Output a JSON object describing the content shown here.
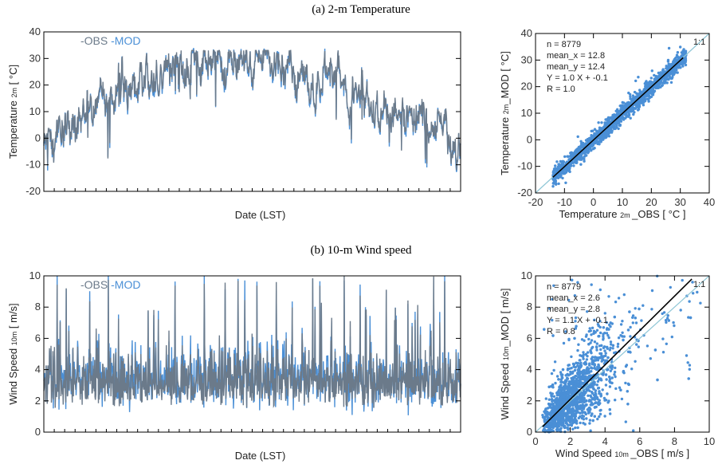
{
  "colors": {
    "obs": "#6b7a8a",
    "mod": "#4a8fd6",
    "fit": "#000000",
    "oneone": "#8ec6d6",
    "axis": "#000000"
  },
  "chart_data": [
    {
      "id": "temp-ts",
      "type": "line",
      "section_title": "(a) 2-m Temperature",
      "xlabel": "Date (LST)",
      "ylabel_main": "Temperature",
      "ylabel_sub": "2m",
      "ylabel_unit": " [ °C]",
      "ylim": [
        -20,
        40
      ],
      "yticks": [
        "-20",
        "-10",
        "0",
        "10",
        "20",
        "30",
        "40"
      ],
      "legend": {
        "obs": "-OBS",
        "mod": "-MOD"
      },
      "n_hours": 8779,
      "seasonal": {
        "min": -2,
        "max": 28,
        "peak_fraction": 0.62
      },
      "series": [
        {
          "name": "OBS"
        },
        {
          "name": "MOD"
        }
      ]
    },
    {
      "id": "temp-scatter",
      "type": "scatter",
      "xlabel_main": "Temperature",
      "xlabel_sub": "2m",
      "xlabel_unit": "_OBS [ °C ]",
      "ylabel_main": "Temperature",
      "ylabel_sub": "2m",
      "ylabel_unit": "_MOD [ °C]",
      "xlim": [
        -20,
        40
      ],
      "ylim": [
        -20,
        40
      ],
      "xticks": [
        "-20",
        "-10",
        "0",
        "10",
        "20",
        "30",
        "40"
      ],
      "yticks": [
        "-20",
        "-10",
        "0",
        "10",
        "20",
        "30",
        "40"
      ],
      "stats": [
        "n = 8779",
        "mean_x = 12.8",
        "mean_y = 12.4",
        "Y = 1.0 X + -0.1",
        "R = 1.0"
      ],
      "one_to_one_label": "1:1",
      "fit": {
        "slope": 1.0,
        "intercept": -0.1,
        "x_range": [
          -14,
          31
        ]
      }
    },
    {
      "id": "wind-ts",
      "type": "line",
      "section_title": "(b) 10-m Wind speed",
      "xlabel": "Date (LST)",
      "ylabel_main": "Wind Speed",
      "ylabel_sub": "10m",
      "ylabel_unit": " [ m/s]",
      "ylim": [
        0,
        10
      ],
      "yticks": [
        "0",
        "2",
        "4",
        "6",
        "8",
        "10"
      ],
      "legend": {
        "obs": "-OBS",
        "mod": "-MOD"
      },
      "n_hours": 8779,
      "series": [
        {
          "name": "OBS"
        },
        {
          "name": "MOD"
        }
      ]
    },
    {
      "id": "wind-scatter",
      "type": "scatter",
      "xlabel_main": "Wind Speed",
      "xlabel_sub": "10m",
      "xlabel_unit": "_OBS [ m/s ]",
      "ylabel_main": "Wind Speed",
      "ylabel_sub": "10m",
      "ylabel_unit": "_MOD [ m/s]",
      "xlim": [
        0,
        10
      ],
      "ylim": [
        0,
        10
      ],
      "xticks": [
        "0",
        "2",
        "4",
        "6",
        "8",
        "10"
      ],
      "yticks": [
        "0",
        "2",
        "4",
        "6",
        "8",
        "10"
      ],
      "stats": [
        "n = 8779",
        "mean_x = 2.6",
        "mean_y = 2.8",
        "Y = 1.1 X + -0.1",
        "R = 0.8"
      ],
      "one_to_one_label": "1:1",
      "fit": {
        "slope": 1.1,
        "intercept": -0.1,
        "x_range": [
          0.4,
          9.0
        ]
      }
    }
  ]
}
